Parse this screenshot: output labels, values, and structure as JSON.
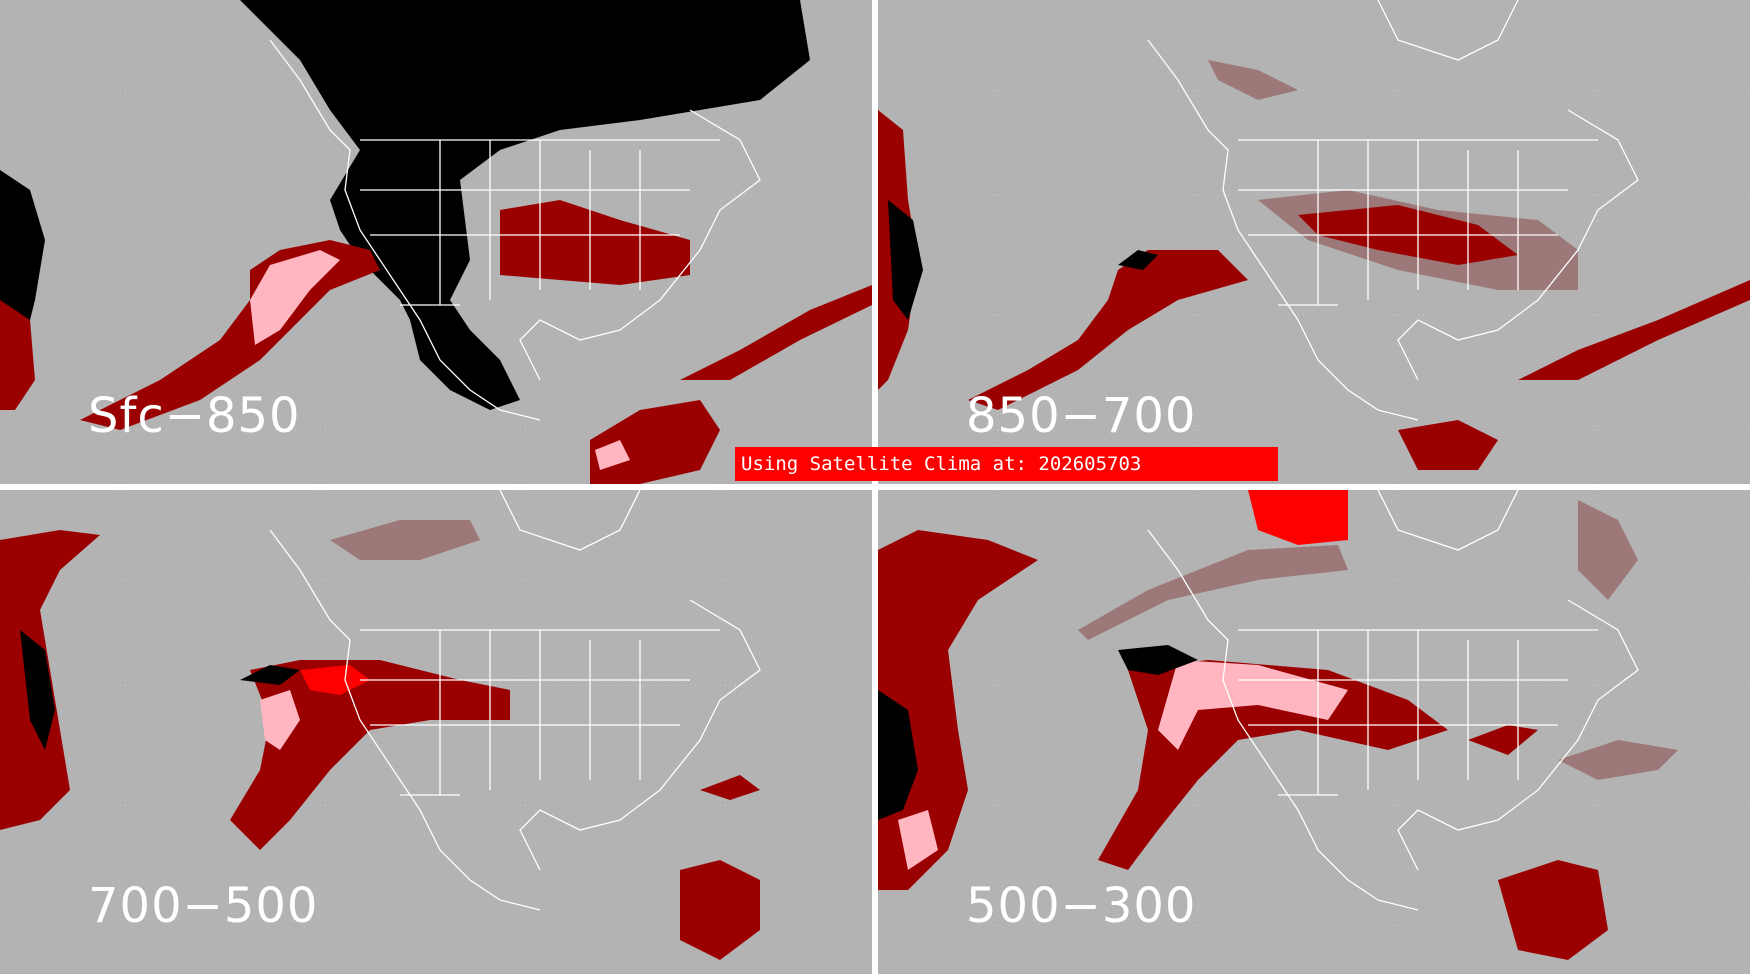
{
  "panels": [
    {
      "label": "Sfc−850"
    },
    {
      "label": "850−700"
    },
    {
      "label": "700−500"
    },
    {
      "label": "500−300"
    }
  ],
  "banner": {
    "text": "Using Satellite Clima at: 202605703"
  },
  "colors": {
    "background": "#b3b3b3",
    "dark_red": "#9b0000",
    "medium": "#9c7878",
    "pink": "#ffb6c1",
    "bright_red": "#ff0000",
    "black": "#000000",
    "outlines": "#ffffff",
    "divider": "#ffffff"
  }
}
